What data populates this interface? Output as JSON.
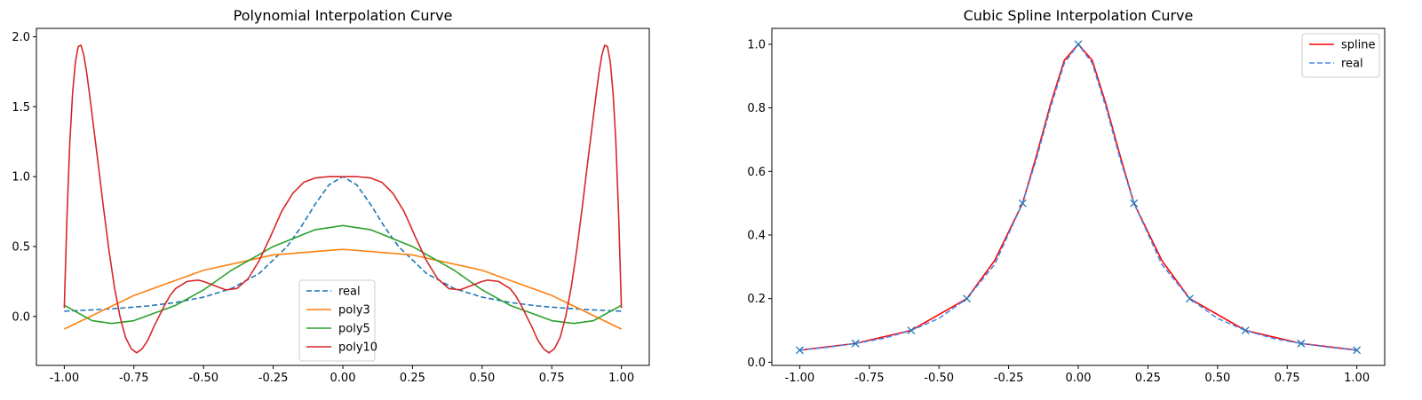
{
  "chart_data": [
    {
      "type": "line",
      "title": "Polynomial Interpolation Curve",
      "xlabel": "",
      "ylabel": "",
      "xlim": [
        -1.1,
        1.1
      ],
      "ylim": [
        -0.35,
        2.06
      ],
      "xticks": [
        "-1.00",
        "-0.75",
        "-0.50",
        "-0.25",
        "0.00",
        "0.25",
        "0.50",
        "0.75",
        "1.00"
      ],
      "yticks": [
        "0.0",
        "0.5",
        "1.0",
        "1.5",
        "2.0"
      ],
      "grid": false,
      "legend_position": "lower-center",
      "series": [
        {
          "name": "real",
          "color": "#1f77b4",
          "style": "dashed",
          "x": [
            -1.0,
            -0.9,
            -0.8,
            -0.7,
            -0.6,
            -0.5,
            -0.4,
            -0.3,
            -0.2,
            -0.15,
            -0.1,
            -0.05,
            0.0,
            0.05,
            0.1,
            0.15,
            0.2,
            0.3,
            0.4,
            0.5,
            0.6,
            0.7,
            0.8,
            0.9,
            1.0
          ],
          "y": [
            0.038,
            0.047,
            0.059,
            0.075,
            0.1,
            0.138,
            0.2,
            0.308,
            0.5,
            0.64,
            0.8,
            0.941,
            1.0,
            0.941,
            0.8,
            0.64,
            0.5,
            0.308,
            0.2,
            0.138,
            0.1,
            0.075,
            0.059,
            0.047,
            0.038
          ]
        },
        {
          "name": "poly3",
          "color": "#ff7f0e",
          "style": "solid",
          "x": [
            -1.0,
            -0.75,
            -0.5,
            -0.25,
            0.0,
            0.25,
            0.5,
            0.75,
            1.0
          ],
          "y": [
            -0.09,
            0.15,
            0.33,
            0.44,
            0.48,
            0.44,
            0.33,
            0.15,
            -0.09
          ]
        },
        {
          "name": "poly5",
          "color": "#2ca02c",
          "style": "solid",
          "x": [
            -1.0,
            -0.9,
            -0.83,
            -0.75,
            -0.6,
            -0.5,
            -0.4,
            -0.25,
            -0.1,
            0.0,
            0.1,
            0.25,
            0.4,
            0.5,
            0.6,
            0.75,
            0.83,
            0.9,
            1.0
          ],
          "y": [
            0.08,
            -0.03,
            -0.05,
            -0.03,
            0.08,
            0.19,
            0.33,
            0.5,
            0.62,
            0.65,
            0.62,
            0.5,
            0.33,
            0.19,
            0.08,
            -0.03,
            -0.05,
            -0.03,
            0.08
          ]
        },
        {
          "name": "poly10",
          "color": "#d62728",
          "style": "solid",
          "x": [
            -1.0,
            -0.99,
            -0.98,
            -0.97,
            -0.96,
            -0.95,
            -0.94,
            -0.93,
            -0.92,
            -0.91,
            -0.9,
            -0.88,
            -0.86,
            -0.84,
            -0.82,
            -0.8,
            -0.78,
            -0.76,
            -0.74,
            -0.72,
            -0.7,
            -0.68,
            -0.66,
            -0.64,
            -0.62,
            -0.6,
            -0.56,
            -0.52,
            -0.5,
            -0.46,
            -0.42,
            -0.38,
            -0.34,
            -0.3,
            -0.26,
            -0.22,
            -0.18,
            -0.14,
            -0.1,
            -0.05,
            0.0,
            0.05,
            0.1,
            0.14,
            0.18,
            0.22,
            0.26,
            0.3,
            0.34,
            0.38,
            0.42,
            0.46,
            0.5,
            0.52,
            0.56,
            0.6,
            0.62,
            0.64,
            0.66,
            0.68,
            0.7,
            0.72,
            0.74,
            0.76,
            0.78,
            0.8,
            0.82,
            0.84,
            0.86,
            0.88,
            0.9,
            0.91,
            0.92,
            0.93,
            0.94,
            0.95,
            0.96,
            0.97,
            0.98,
            0.99,
            1.0
          ],
          "y": [
            0.06,
            0.73,
            1.25,
            1.6,
            1.82,
            1.93,
            1.94,
            1.87,
            1.75,
            1.6,
            1.44,
            1.12,
            0.79,
            0.48,
            0.21,
            0.0,
            -0.15,
            -0.23,
            -0.26,
            -0.23,
            -0.17,
            -0.08,
            0.0,
            0.08,
            0.15,
            0.2,
            0.25,
            0.26,
            0.25,
            0.22,
            0.19,
            0.2,
            0.27,
            0.4,
            0.57,
            0.75,
            0.88,
            0.96,
            0.99,
            1.0,
            1.0,
            1.0,
            0.99,
            0.96,
            0.88,
            0.75,
            0.57,
            0.4,
            0.27,
            0.2,
            0.19,
            0.22,
            0.25,
            0.26,
            0.25,
            0.2,
            0.15,
            0.08,
            0.0,
            -0.08,
            -0.17,
            -0.23,
            -0.26,
            -0.23,
            -0.15,
            0.0,
            0.21,
            0.48,
            0.79,
            1.12,
            1.44,
            1.6,
            1.75,
            1.87,
            1.94,
            1.93,
            1.82,
            1.6,
            1.25,
            0.73,
            0.06
          ]
        }
      ]
    },
    {
      "type": "line",
      "title": "Cubic Spline Interpolation Curve",
      "xlabel": "",
      "ylabel": "",
      "xlim": [
        -1.1,
        1.1
      ],
      "ylim": [
        -0.01,
        1.05
      ],
      "xticks": [
        "-1.00",
        "-0.75",
        "-0.50",
        "-0.25",
        "0.00",
        "0.25",
        "0.50",
        "0.75",
        "1.00"
      ],
      "yticks": [
        "0.0",
        "0.2",
        "0.4",
        "0.6",
        "0.8",
        "1.0"
      ],
      "grid": false,
      "legend_position": "top-right",
      "series": [
        {
          "name": "spline",
          "color": "#ff0000",
          "style": "solid",
          "x": [
            -1.0,
            -0.8,
            -0.6,
            -0.4,
            -0.3,
            -0.2,
            -0.15,
            -0.1,
            -0.05,
            0.0,
            0.05,
            0.1,
            0.15,
            0.2,
            0.3,
            0.4,
            0.6,
            0.8,
            1.0
          ],
          "y": [
            0.038,
            0.059,
            0.1,
            0.2,
            0.32,
            0.5,
            0.65,
            0.81,
            0.95,
            1.0,
            0.95,
            0.81,
            0.65,
            0.5,
            0.32,
            0.2,
            0.1,
            0.059,
            0.038
          ]
        },
        {
          "name": "real",
          "color": "#4a86e8",
          "style": "dashed",
          "x": [
            -1.0,
            -0.9,
            -0.8,
            -0.7,
            -0.6,
            -0.5,
            -0.4,
            -0.3,
            -0.2,
            -0.15,
            -0.1,
            -0.05,
            0.0,
            0.05,
            0.1,
            0.15,
            0.2,
            0.3,
            0.4,
            0.5,
            0.6,
            0.7,
            0.8,
            0.9,
            1.0
          ],
          "y": [
            0.038,
            0.047,
            0.059,
            0.075,
            0.1,
            0.138,
            0.2,
            0.308,
            0.5,
            0.64,
            0.8,
            0.941,
            1.0,
            0.941,
            0.8,
            0.64,
            0.5,
            0.308,
            0.2,
            0.138,
            0.1,
            0.075,
            0.059,
            0.047,
            0.038
          ]
        }
      ],
      "markers": {
        "shape": "x",
        "color": "#1f77b4",
        "x": [
          -1.0,
          -0.8,
          -0.6,
          -0.4,
          -0.2,
          0.0,
          0.2,
          0.4,
          0.6,
          0.8,
          1.0
        ],
        "y": [
          0.038,
          0.059,
          0.1,
          0.2,
          0.5,
          1.0,
          0.5,
          0.2,
          0.1,
          0.059,
          0.038
        ]
      }
    }
  ]
}
